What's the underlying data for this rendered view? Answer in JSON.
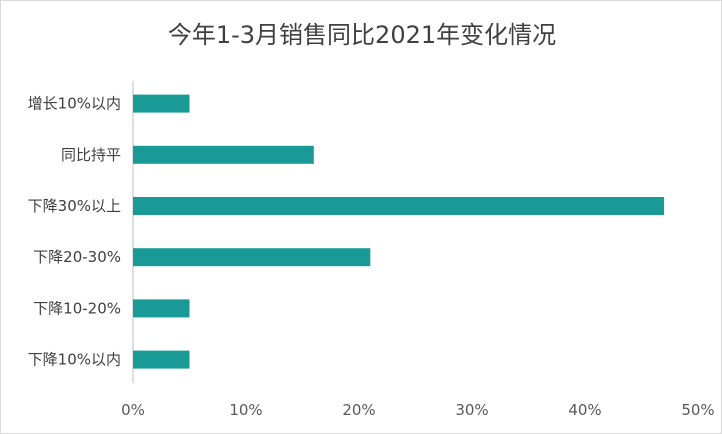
{
  "chart_data": {
    "type": "bar",
    "orientation": "horizontal",
    "title": "今年1-3月销售同比2021年变化情况",
    "categories": [
      "增长10%以内",
      "同比持平",
      "下降30%以上",
      "下降20-30%",
      "下降10-20%",
      "下降10%以内"
    ],
    "values": [
      5,
      16,
      47,
      21,
      5,
      5
    ],
    "xlim": [
      0,
      50
    ],
    "xticks": [
      "0%",
      "10%",
      "20%",
      "30%",
      "40%",
      "50%"
    ],
    "grid": false,
    "bar_color": "#1a9a96"
  }
}
